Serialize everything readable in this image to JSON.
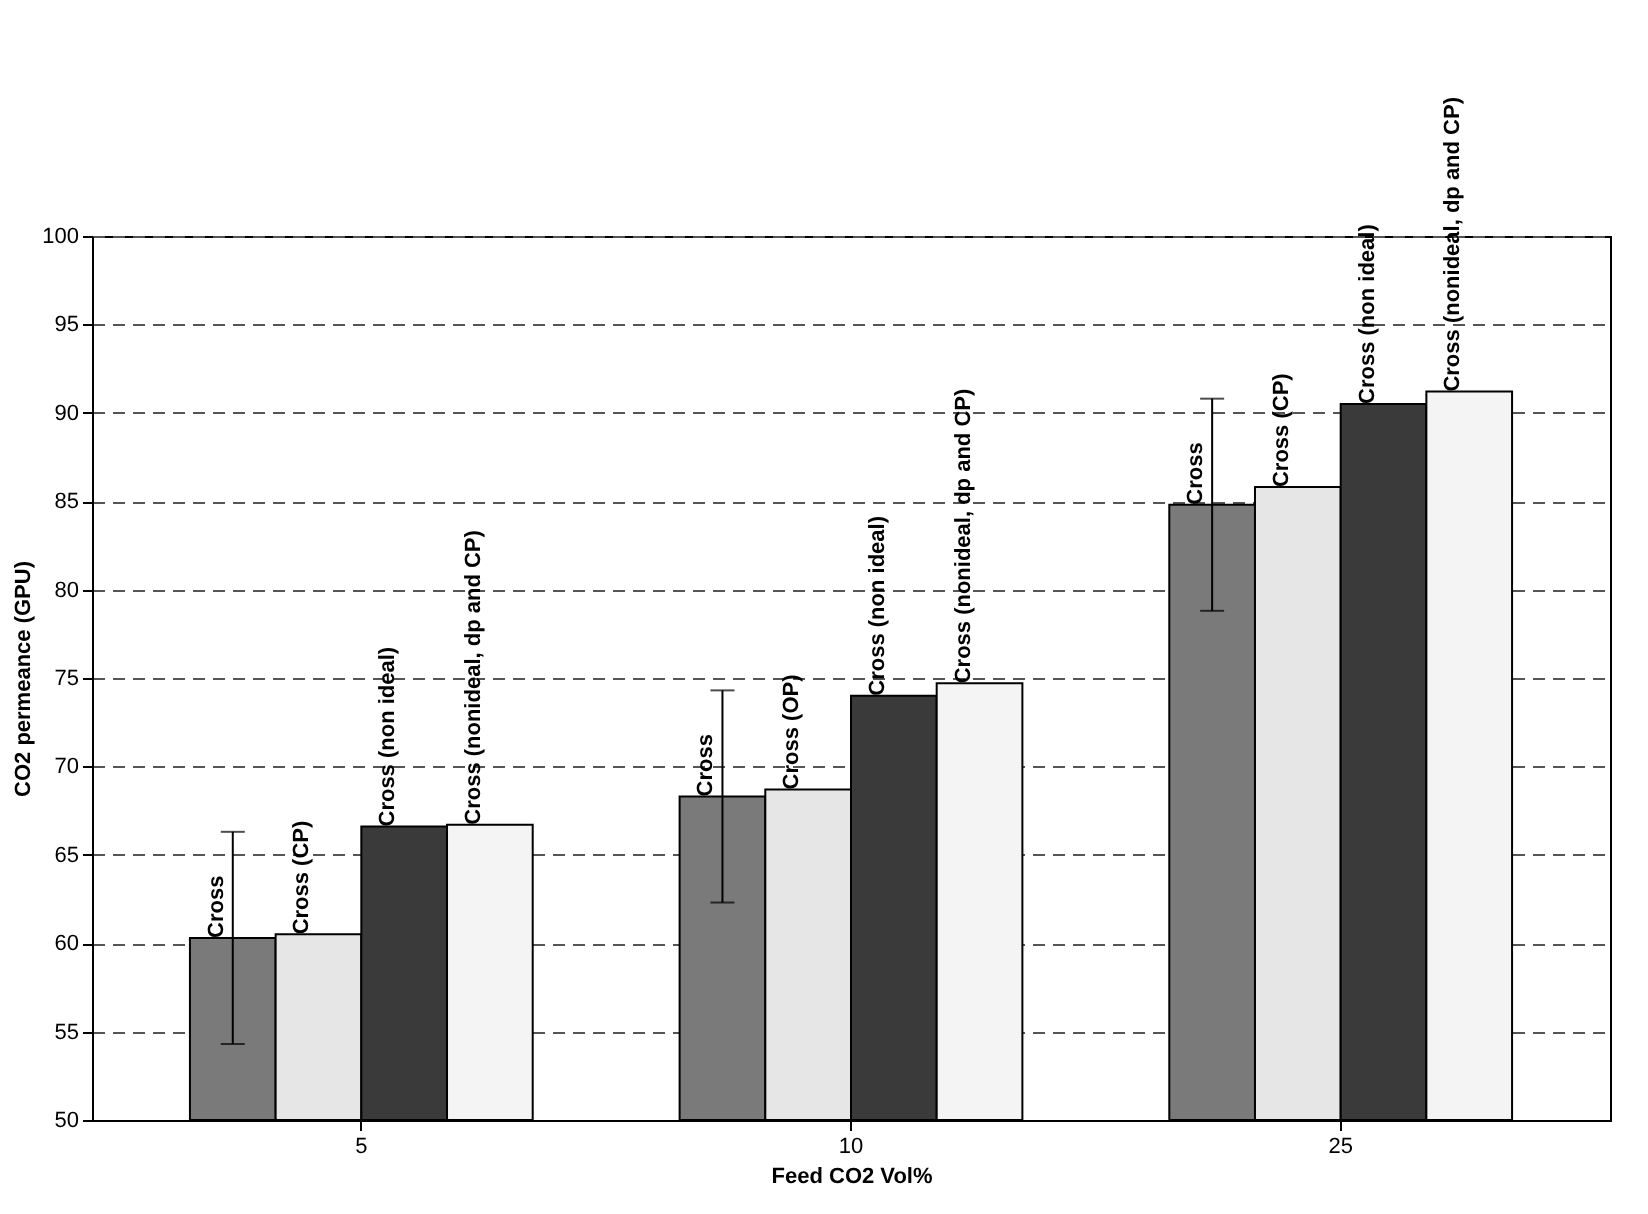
{
  "chart_data": {
    "type": "bar",
    "xlabel": "Feed CO2 Vol%",
    "ylabel": "CO2 permeance (GPU)",
    "categories": [
      "5",
      "10",
      "25"
    ],
    "series": [
      {
        "color": "#7a7a7a",
        "values": [
          60.3,
          68.3,
          84.8
        ],
        "errors": [
          6,
          6,
          6
        ],
        "value_labels": [
          "Cross",
          "Cross",
          "Cross"
        ]
      },
      {
        "color": "#e6e6e6",
        "values": [
          60.5,
          68.7,
          85.8
        ],
        "value_labels": [
          "Cross (CP)",
          "Cross (OP)",
          "Cross (CP)"
        ]
      },
      {
        "color": "#3a3a3a",
        "values": [
          66.6,
          74.0,
          90.5
        ],
        "value_labels": [
          "Cross (non ideal)",
          "Cross (non ideal)",
          "Cross (non ideal)"
        ]
      },
      {
        "color": "#f4f4f4",
        "values": [
          66.7,
          74.7,
          91.2
        ],
        "value_labels": [
          "Cross (nonideal, dp and CP)",
          "Cross (nonideal, dp and CP)",
          "Cross (nonideal, dp and CP)"
        ]
      }
    ],
    "ylim": [
      50,
      100
    ],
    "yticks": [
      50,
      55,
      60,
      65,
      70,
      75,
      80,
      85,
      90,
      95,
      100
    ],
    "grid": "y",
    "legend": false
  }
}
